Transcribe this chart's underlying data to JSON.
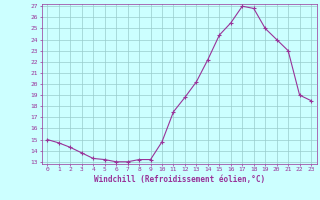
{
  "x": [
    0,
    1,
    2,
    3,
    4,
    5,
    6,
    7,
    8,
    9,
    10,
    11,
    12,
    13,
    14,
    15,
    16,
    17,
    18,
    19,
    20,
    21,
    22,
    23
  ],
  "y": [
    15.0,
    14.7,
    14.3,
    13.8,
    13.3,
    13.2,
    13.0,
    13.0,
    13.2,
    13.2,
    14.8,
    17.5,
    18.8,
    20.2,
    22.2,
    24.4,
    25.5,
    27.0,
    26.8,
    25.0,
    24.0,
    23.0,
    19.0,
    18.5
  ],
  "line_color": "#993399",
  "marker_color": "#993399",
  "bg_color": "#ccffff",
  "grid_color": "#99cccc",
  "xlabel": "Windchill (Refroidissement éolien,°C)",
  "xlabel_color": "#993399",
  "xlim": [
    -0.5,
    23.5
  ],
  "ylim": [
    13,
    27
  ],
  "yticks": [
    13,
    14,
    15,
    16,
    17,
    18,
    19,
    20,
    21,
    22,
    23,
    24,
    25,
    26,
    27
  ],
  "xticks": [
    0,
    1,
    2,
    3,
    4,
    5,
    6,
    7,
    8,
    9,
    10,
    11,
    12,
    13,
    14,
    15,
    16,
    17,
    18,
    19,
    20,
    21,
    22,
    23
  ],
  "tick_color": "#993399",
  "tick_label_color": "#993399",
  "figsize": [
    3.2,
    2.0
  ],
  "dpi": 100
}
